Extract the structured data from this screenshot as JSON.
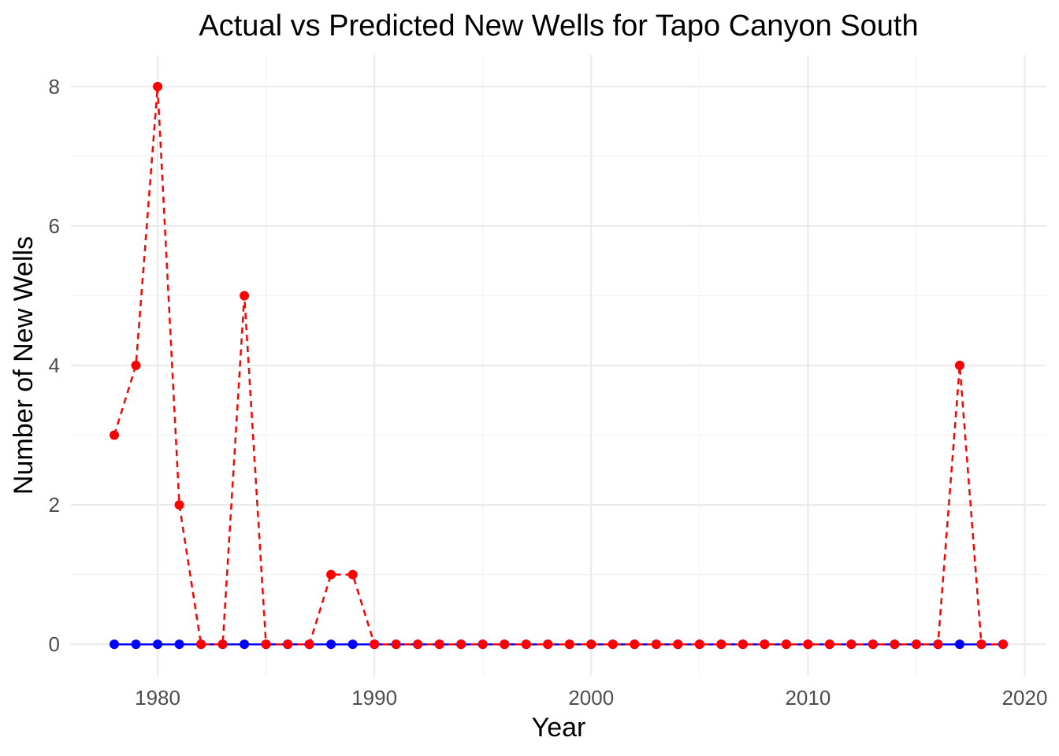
{
  "chart_data": {
    "type": "line",
    "title": "Actual vs Predicted New Wells for Tapo Canyon  South",
    "xlabel": "Year",
    "ylabel": "Number of New Wells",
    "xlim": [
      1976,
      2021
    ],
    "ylim": [
      -0.45,
      8.45
    ],
    "x_ticks": [
      1980,
      1990,
      2000,
      2010,
      2020
    ],
    "y_ticks": [
      0,
      2,
      4,
      6,
      8
    ],
    "grid": true,
    "legend": "none",
    "x": [
      1978,
      1979,
      1980,
      1981,
      1982,
      1983,
      1984,
      1985,
      1986,
      1987,
      1988,
      1989,
      1990,
      1991,
      1992,
      1993,
      1994,
      1995,
      1996,
      1997,
      1998,
      1999,
      2000,
      2001,
      2002,
      2003,
      2004,
      2005,
      2006,
      2007,
      2008,
      2009,
      2010,
      2011,
      2012,
      2013,
      2014,
      2015,
      2016,
      2017,
      2018,
      2019
    ],
    "series": [
      {
        "color": "#0000ff",
        "line_style": "solid",
        "values": [
          0,
          0,
          0,
          0,
          0,
          0,
          0,
          0,
          0,
          0,
          0,
          0,
          0,
          0,
          0,
          0,
          0,
          0,
          0,
          0,
          0,
          0,
          0,
          0,
          0,
          0,
          0,
          0,
          0,
          0,
          0,
          0,
          0,
          0,
          0,
          0,
          0,
          0,
          0,
          0,
          0,
          0
        ]
      },
      {
        "color": "#ff0000",
        "line_style": "dashed",
        "values": [
          3,
          4,
          8,
          2,
          0,
          0,
          5,
          0,
          0,
          0,
          1,
          1,
          0,
          0,
          0,
          0,
          0,
          0,
          0,
          0,
          0,
          0,
          0,
          0,
          0,
          0,
          0,
          0,
          0,
          0,
          0,
          0,
          0,
          0,
          0,
          0,
          0,
          0,
          0,
          4,
          0,
          0
        ]
      }
    ]
  }
}
